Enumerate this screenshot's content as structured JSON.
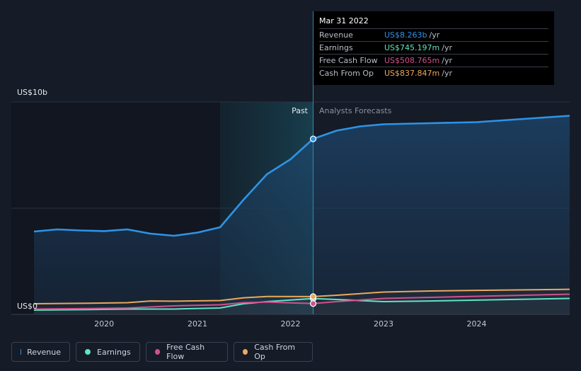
{
  "tooltip": {
    "date": "Mar 31 2022",
    "rows": [
      {
        "label": "Revenue",
        "value": "US$8.263b",
        "unit": "/yr",
        "color": "#2e93e6"
      },
      {
        "label": "Earnings",
        "value": "US$745.197m",
        "unit": "/yr",
        "color": "#5fe3c2"
      },
      {
        "label": "Free Cash Flow",
        "value": "US$508.765m",
        "unit": "/yr",
        "color": "#d0508e"
      },
      {
        "label": "Cash From Op",
        "value": "US$837.847m",
        "unit": "/yr",
        "color": "#eaa85d"
      }
    ]
  },
  "labels": {
    "past": "Past",
    "forecast": "Analysts Forecasts"
  },
  "legend": [
    {
      "label": "Revenue",
      "color": "#2e93e6"
    },
    {
      "label": "Earnings",
      "color": "#5fe3c2"
    },
    {
      "label": "Free Cash Flow",
      "color": "#d0508e"
    },
    {
      "label": "Cash From Op",
      "color": "#eaa85d"
    }
  ],
  "chart_data": {
    "type": "line",
    "ylim": [
      0,
      10
    ],
    "y_unit": "US$ billions",
    "y_ticks": [
      {
        "value": 0,
        "label": "US$0"
      },
      {
        "value": 10,
        "label": "US$10b"
      }
    ],
    "xlim": [
      "2019-04-01",
      "2024-12-31"
    ],
    "x_ticks": [
      {
        "date": "2020-01-01",
        "label": "2020"
      },
      {
        "date": "2021-01-01",
        "label": "2021"
      },
      {
        "date": "2022-01-01",
        "label": "2022"
      },
      {
        "date": "2023-01-01",
        "label": "2023"
      },
      {
        "date": "2024-01-01",
        "label": "2024"
      }
    ],
    "gridlines": [
      0,
      5,
      10
    ],
    "past_shade_start": "2021-03-31",
    "divider_date": "2022-03-31",
    "highlight_date": "2022-03-31",
    "series": [
      {
        "name": "Revenue",
        "color": "#2e93e6",
        "fill": true,
        "points": [
          [
            "2019-04-01",
            3.9
          ],
          [
            "2019-07-01",
            4.0
          ],
          [
            "2019-10-01",
            3.95
          ],
          [
            "2020-01-01",
            3.92
          ],
          [
            "2020-04-01",
            4.0
          ],
          [
            "2020-07-01",
            3.8
          ],
          [
            "2020-10-01",
            3.7
          ],
          [
            "2021-01-01",
            3.85
          ],
          [
            "2021-03-31",
            4.1
          ],
          [
            "2021-07-01",
            5.4
          ],
          [
            "2021-10-01",
            6.6
          ],
          [
            "2022-01-01",
            7.3
          ],
          [
            "2022-03-31",
            8.263
          ],
          [
            "2022-07-01",
            8.65
          ],
          [
            "2022-10-01",
            8.85
          ],
          [
            "2023-01-01",
            8.95
          ],
          [
            "2023-07-01",
            9.0
          ],
          [
            "2024-01-01",
            9.05
          ],
          [
            "2024-07-01",
            9.2
          ],
          [
            "2024-12-31",
            9.35
          ]
        ]
      },
      {
        "name": "Earnings",
        "color": "#5fe3c2",
        "fill": false,
        "points": [
          [
            "2019-04-01",
            0.2
          ],
          [
            "2019-10-01",
            0.22
          ],
          [
            "2020-04-01",
            0.25
          ],
          [
            "2020-10-01",
            0.25
          ],
          [
            "2021-03-31",
            0.3
          ],
          [
            "2021-07-01",
            0.5
          ],
          [
            "2021-10-01",
            0.6
          ],
          [
            "2022-03-31",
            0.745
          ],
          [
            "2022-07-01",
            0.7
          ],
          [
            "2023-01-01",
            0.6
          ],
          [
            "2023-07-01",
            0.63
          ],
          [
            "2024-01-01",
            0.67
          ],
          [
            "2024-12-31",
            0.75
          ]
        ]
      },
      {
        "name": "Free Cash Flow",
        "color": "#d0508e",
        "fill": false,
        "points": [
          [
            "2019-04-01",
            0.25
          ],
          [
            "2019-10-01",
            0.27
          ],
          [
            "2020-04-01",
            0.3
          ],
          [
            "2020-10-01",
            0.4
          ],
          [
            "2021-03-31",
            0.45
          ],
          [
            "2021-07-01",
            0.55
          ],
          [
            "2021-10-01",
            0.58
          ],
          [
            "2022-03-31",
            0.509
          ],
          [
            "2022-07-01",
            0.6
          ],
          [
            "2023-01-01",
            0.75
          ],
          [
            "2023-07-01",
            0.8
          ],
          [
            "2024-01-01",
            0.85
          ],
          [
            "2024-12-31",
            0.95
          ]
        ]
      },
      {
        "name": "Cash From Op",
        "color": "#eaa85d",
        "fill": false,
        "points": [
          [
            "2019-04-01",
            0.5
          ],
          [
            "2019-10-01",
            0.52
          ],
          [
            "2020-04-01",
            0.55
          ],
          [
            "2020-07-01",
            0.63
          ],
          [
            "2020-10-01",
            0.62
          ],
          [
            "2021-03-31",
            0.65
          ],
          [
            "2021-07-01",
            0.78
          ],
          [
            "2021-10-01",
            0.84
          ],
          [
            "2022-03-31",
            0.838
          ],
          [
            "2022-07-01",
            0.9
          ],
          [
            "2023-01-01",
            1.05
          ],
          [
            "2023-07-01",
            1.1
          ],
          [
            "2024-01-01",
            1.13
          ],
          [
            "2024-12-31",
            1.18
          ]
        ]
      }
    ]
  }
}
